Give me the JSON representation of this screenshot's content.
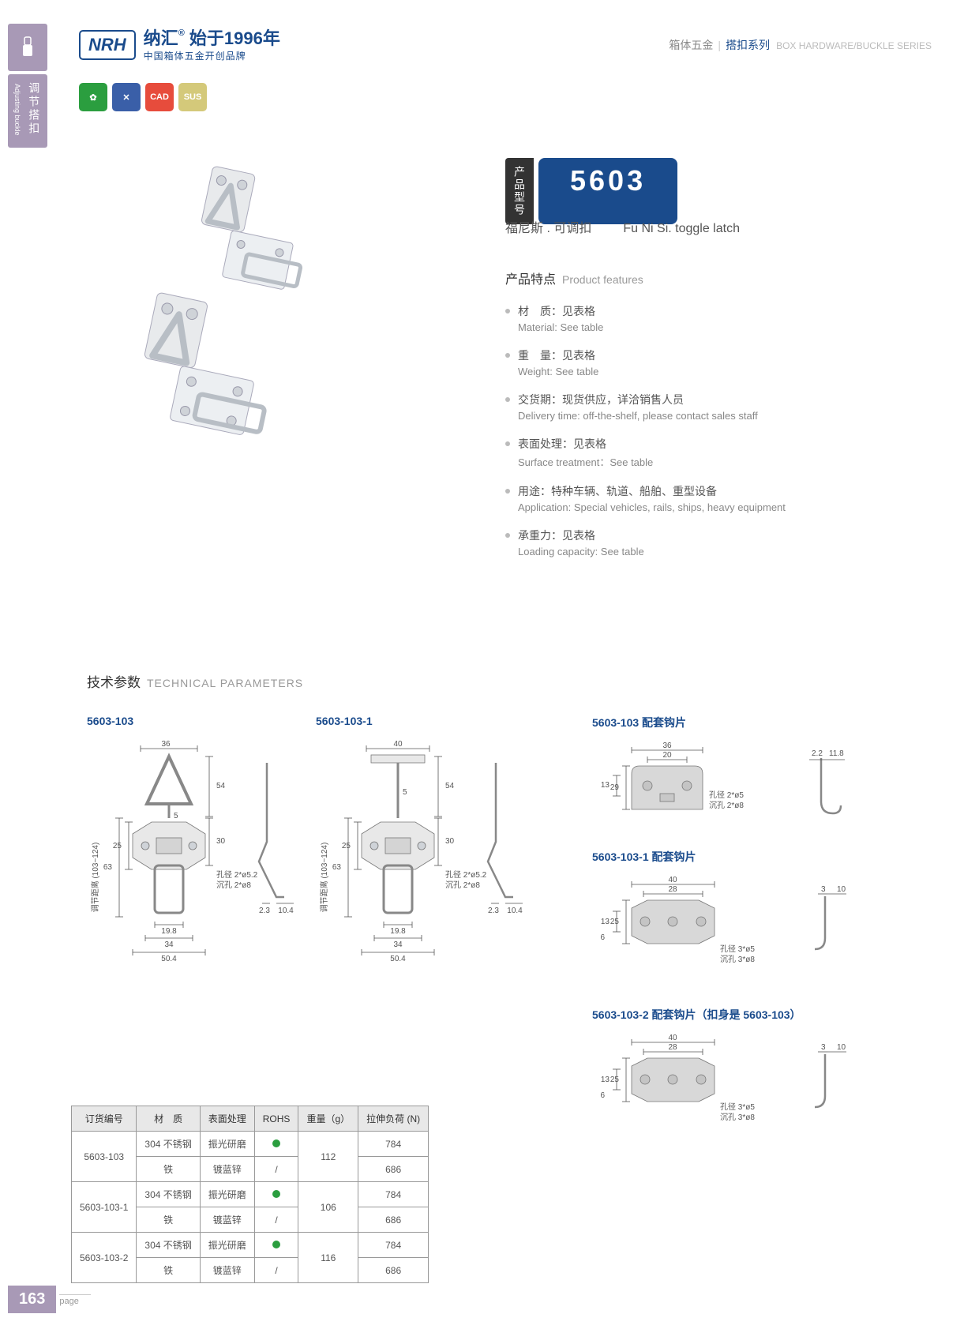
{
  "sideTab": {
    "cn": "调节搭扣",
    "en": "Adjusting buckle"
  },
  "header": {
    "logoBox": "NRH",
    "logoCn": "纳汇",
    "logoYear": "始于1996年",
    "logoSub": "中国箱体五金开创品牌",
    "rightCn1": "箱体五金",
    "rightCn2": "搭扣系列",
    "rightEn": "BOX HARDWARE/BUCKLE SERIES"
  },
  "badges": [
    {
      "color": "#2b9e3f",
      "text": "✿"
    },
    {
      "color": "#3a5fa8",
      "text": "✕"
    },
    {
      "color": "#e74c3c",
      "text": "CAD"
    },
    {
      "color": "#d4c97a",
      "text": "SUS"
    }
  ],
  "model": {
    "label": "产品型号",
    "number": "5603",
    "subCn": "福尼斯 . 可调扣",
    "subEn": "Fu Ni Si. toggle latch"
  },
  "features": {
    "titleCn": "产品特点",
    "titleEn": "Product features",
    "items": [
      {
        "cn": "材　质：见表格",
        "en": "Material: See table"
      },
      {
        "cn": "重　量：见表格",
        "en": "Weight: See table"
      },
      {
        "cn": "交货期：现货供应，详洽销售人员",
        "en": "Delivery time: off-the-shelf, please contact sales staff"
      },
      {
        "cn": "表面处理：见表格",
        "en": "Surface treatment：See table"
      },
      {
        "cn": "用途：特种车辆、轨道、船舶、重型设备",
        "en": "Application: Special vehicles, rails, ships, heavy equipment"
      },
      {
        "cn": "承重力：见表格",
        "en": "Loading capacity: See table"
      }
    ]
  },
  "techTitle": {
    "cn": "技术参数",
    "en": "TECHNICAL PARAMETERS"
  },
  "diagrams": {
    "d1": {
      "label": "5603-103",
      "dims": {
        "w": "36",
        "h54": "54",
        "h5": "5",
        "h30": "30",
        "h25": "25",
        "h63": "63",
        "range": "调节距离 (103~124)",
        "w198": "19.8",
        "w34": "34",
        "w504": "50.4",
        "hole": "孔径 2*ø5.2",
        "sink": "沉孔 2*ø8",
        "side23": "2.3",
        "side104": "10.4"
      }
    },
    "d2": {
      "label": "5603-103-1",
      "dims": {
        "w": "40",
        "h54": "54",
        "h5": "5",
        "h30": "30",
        "h25": "25",
        "h63": "63",
        "range": "调节距离 (103~124)",
        "w198": "19.8",
        "w34": "34",
        "w504": "50.4",
        "hole": "孔径 2*ø5.2",
        "sink": "沉孔 2*ø8",
        "side23": "2.3",
        "side104": "10.4"
      }
    },
    "d3": {
      "label": "5603-103 配套钩片",
      "dims": {
        "w36": "36",
        "w20": "20",
        "h29": "29",
        "h13": "13",
        "hole": "孔径 2*ø5",
        "sink": "沉孔 2*ø8",
        "side22": "2.2",
        "side118": "11.8"
      }
    },
    "d4": {
      "label": "5603-103-1 配套钩片",
      "dims": {
        "w40": "40",
        "w28": "28",
        "h25": "25",
        "h13": "13",
        "h6": "6",
        "hole": "孔径 3*ø5",
        "sink": "沉孔 3*ø8",
        "side3": "3",
        "side10": "10"
      }
    },
    "d5": {
      "label": "5603-103-2 配套钩片（扣身是 5603-103）",
      "dims": {
        "w40": "40",
        "w28": "28",
        "h25": "25",
        "h13": "13",
        "h6": "6",
        "hole": "孔径 3*ø5",
        "sink": "沉孔 3*ø8",
        "side3": "3",
        "side10": "10"
      }
    }
  },
  "table": {
    "headers": [
      "订货编号",
      "材　质",
      "表面处理",
      "ROHS",
      "重量（g）",
      "拉伸负荷 (N)"
    ],
    "rows": [
      {
        "code": "5603-103",
        "mat": "304 不锈钢",
        "surf": "振光研磨",
        "rohs": true,
        "wt": "112",
        "load": "784",
        "span": 2
      },
      {
        "code": "",
        "mat": "铁",
        "surf": "镀蓝锌",
        "rohs": false,
        "wt": "",
        "load": "686"
      },
      {
        "code": "5603-103-1",
        "mat": "304 不锈钢",
        "surf": "振光研磨",
        "rohs": true,
        "wt": "106",
        "load": "784",
        "span": 2
      },
      {
        "code": "",
        "mat": "铁",
        "surf": "镀蓝锌",
        "rohs": false,
        "wt": "",
        "load": "686"
      },
      {
        "code": "5603-103-2",
        "mat": "304 不锈钢",
        "surf": "振光研磨",
        "rohs": true,
        "wt": "116",
        "load": "784",
        "span": 2
      },
      {
        "code": "",
        "mat": "铁",
        "surf": "镀蓝锌",
        "rohs": false,
        "wt": "",
        "load": "686"
      }
    ]
  },
  "pageNum": {
    "num": "163",
    "label": "page"
  }
}
